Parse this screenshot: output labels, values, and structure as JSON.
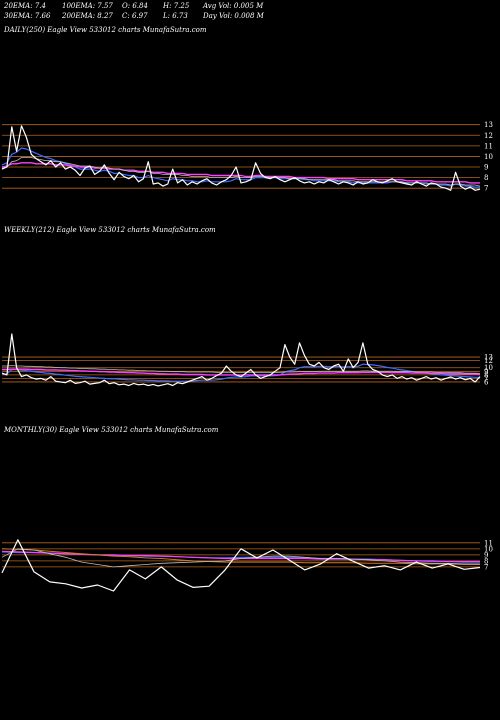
{
  "header": {
    "row1": [
      {
        "label": "20EMA: 7.4"
      },
      {
        "label": "100EMA: 7.57"
      },
      {
        "label": "O: 6.84"
      },
      {
        "label": "H: 7.25"
      },
      {
        "label": "Avg Vol: 0.005 M"
      }
    ],
    "row2": [
      {
        "label": "30EMA: 7.66"
      },
      {
        "label": "200EMA: 8.27"
      },
      {
        "label": "C: 6.97"
      },
      {
        "label": "L: 6.73"
      },
      {
        "label": "Day Vol: 0.008 M"
      }
    ]
  },
  "colors": {
    "background": "#000000",
    "price": "#ffffff",
    "ema_blue": "#3a6cff",
    "ema_magenta": "#ff40ff",
    "ema_orange": "#d07a20",
    "ema_gray": "#bbbbbb",
    "hline": "#b5651d"
  },
  "chart_data": [
    {
      "type": "line",
      "title": "DAILY(250) Eagle  View  533012  charts MunafaSutra.com",
      "yticks": [
        13,
        12,
        11,
        10,
        9,
        8,
        7
      ],
      "ylim": [
        5.6,
        14.2
      ],
      "series": [
        {
          "name": "price",
          "values": [
            8.8,
            9.0,
            12.8,
            10.5,
            12.9,
            11.8,
            10.2,
            9.8,
            9.5,
            9.2,
            9.6,
            9.0,
            9.4,
            8.8,
            9.0,
            8.7,
            8.2,
            8.9,
            9.1,
            8.3,
            8.6,
            9.2,
            8.4,
            7.8,
            8.5,
            8.1,
            7.9,
            8.2,
            7.6,
            7.9,
            9.5,
            7.4,
            7.5,
            7.2,
            7.4,
            8.8,
            7.5,
            7.8,
            7.3,
            7.6,
            7.4,
            7.7,
            7.9,
            7.5,
            7.3,
            7.6,
            7.8,
            8.2,
            9.0,
            7.5,
            7.6,
            7.8,
            9.4,
            8.4,
            8.0,
            7.9,
            8.1,
            7.8,
            7.6,
            7.8,
            8.0,
            7.7,
            7.5,
            7.6,
            7.4,
            7.6,
            7.5,
            7.8,
            7.6,
            7.4,
            7.6,
            7.5,
            7.3,
            7.6,
            7.4,
            7.5,
            7.8,
            7.6,
            7.5,
            7.7,
            7.9,
            7.6,
            7.5,
            7.4,
            7.3,
            7.6,
            7.4,
            7.2,
            7.5,
            7.4,
            7.1,
            7.0,
            6.8,
            8.5,
            7.2,
            6.9,
            7.1,
            6.8,
            6.9
          ]
        },
        {
          "name": "ema_fast",
          "values": [
            9.2,
            9.4,
            10.2,
            10.4,
            10.8,
            10.7,
            10.5,
            10.3,
            10.1,
            9.9,
            9.8,
            9.6,
            9.5,
            9.3,
            9.2,
            9.0,
            8.8,
            8.8,
            8.8,
            8.7,
            8.6,
            8.7,
            8.6,
            8.4,
            8.4,
            8.3,
            8.2,
            8.2,
            8.0,
            8.0,
            8.2,
            8.0,
            7.9,
            7.8,
            7.7,
            7.9,
            7.8,
            7.8,
            7.7,
            7.7,
            7.6,
            7.6,
            7.7,
            7.6,
            7.6,
            7.6,
            7.6,
            7.7,
            7.9,
            7.8,
            7.8,
            7.8,
            8.0,
            8.0,
            8.0,
            8.0,
            8.0,
            7.9,
            7.9,
            7.9,
            7.9,
            7.9,
            7.8,
            7.8,
            7.7,
            7.7,
            7.7,
            7.7,
            7.7,
            7.6,
            7.6,
            7.6,
            7.5,
            7.5,
            7.5,
            7.5,
            7.5,
            7.5,
            7.5,
            7.5,
            7.6,
            7.6,
            7.6,
            7.5,
            7.5,
            7.5,
            7.5,
            7.4,
            7.4,
            7.4,
            7.3,
            7.3,
            7.2,
            7.4,
            7.3,
            7.2,
            7.2,
            7.1,
            7.1
          ]
        },
        {
          "name": "ema_slow",
          "values": [
            9.0,
            9.1,
            9.3,
            9.3,
            9.4,
            9.4,
            9.4,
            9.3,
            9.3,
            9.3,
            9.3,
            9.2,
            9.2,
            9.2,
            9.1,
            9.1,
            9.0,
            9.0,
            9.0,
            8.9,
            8.9,
            8.9,
            8.8,
            8.8,
            8.8,
            8.7,
            8.7,
            8.7,
            8.6,
            8.6,
            8.6,
            8.5,
            8.5,
            8.5,
            8.4,
            8.4,
            8.4,
            8.4,
            8.3,
            8.3,
            8.3,
            8.3,
            8.3,
            8.2,
            8.2,
            8.2,
            8.2,
            8.2,
            8.2,
            8.2,
            8.1,
            8.1,
            8.2,
            8.2,
            8.1,
            8.1,
            8.1,
            8.1,
            8.1,
            8.1,
            8.0,
            8.0,
            8.0,
            8.0,
            8.0,
            8.0,
            8.0,
            7.9,
            7.9,
            7.9,
            7.9,
            7.9,
            7.9,
            7.8,
            7.8,
            7.8,
            7.8,
            7.8,
            7.8,
            7.8,
            7.8,
            7.8,
            7.8,
            7.7,
            7.7,
            7.7,
            7.7,
            7.7,
            7.7,
            7.6,
            7.6,
            7.6,
            7.6,
            7.6,
            7.6,
            7.6,
            7.5,
            7.5,
            7.5
          ]
        },
        {
          "name": "ema_mid",
          "values": [
            8.9,
            9.0,
            9.5,
            9.6,
            9.9,
            9.9,
            9.9,
            9.8,
            9.7,
            9.6,
            9.6,
            9.5,
            9.5,
            9.4,
            9.3,
            9.2,
            9.1,
            9.1,
            9.1,
            9.0,
            8.9,
            9.0,
            8.9,
            8.8,
            8.8,
            8.7,
            8.6,
            8.6,
            8.5,
            8.5,
            8.6,
            8.4,
            8.4,
            8.3,
            8.3,
            8.3,
            8.3,
            8.2,
            8.2,
            8.1,
            8.1,
            8.1,
            8.1,
            8.0,
            8.0,
            8.0,
            8.0,
            8.0,
            8.1,
            8.0,
            8.0,
            8.0,
            8.1,
            8.1,
            8.1,
            8.0,
            8.0,
            8.0,
            8.0,
            7.9,
            7.9,
            7.9,
            7.9,
            7.8,
            7.8,
            7.8,
            7.8,
            7.8,
            7.8,
            7.7,
            7.7,
            7.7,
            7.7,
            7.6,
            7.6,
            7.6,
            7.6,
            7.6,
            7.6,
            7.6,
            7.6,
            7.6,
            7.6,
            7.5,
            7.5,
            7.5,
            7.5,
            7.5,
            7.4,
            7.4,
            7.4,
            7.4,
            7.3,
            7.4,
            7.4,
            7.3,
            7.3,
            7.3,
            7.2
          ]
        }
      ]
    },
    {
      "type": "line",
      "title": "WEEKLY(212) Eagle  View  533012  charts MunafaSutra.com",
      "yticks": [
        13,
        12,
        10,
        9,
        8,
        7,
        6
      ],
      "ylim": [
        4.3,
        24.0
      ],
      "series": [
        {
          "name": "price",
          "values": [
            8.5,
            8.0,
            19.5,
            10.0,
            7.5,
            8.0,
            7.2,
            6.8,
            7.0,
            6.5,
            7.5,
            6.2,
            6.0,
            5.8,
            6.5,
            5.6,
            5.8,
            6.2,
            5.4,
            5.6,
            5.8,
            6.5,
            5.5,
            5.8,
            5.2,
            5.4,
            5.0,
            5.6,
            5.2,
            5.4,
            5.0,
            5.3,
            4.9,
            5.2,
            5.5,
            5.0,
            5.8,
            5.5,
            6.0,
            6.5,
            7.0,
            7.5,
            6.5,
            7.0,
            7.8,
            8.5,
            10.5,
            9.0,
            8.0,
            7.5,
            8.5,
            9.5,
            8.0,
            7.0,
            7.5,
            8.0,
            9.0,
            10.0,
            16.5,
            13.0,
            11.0,
            17.0,
            13.5,
            11.0,
            10.5,
            11.5,
            10.0,
            9.5,
            10.5,
            11.0,
            9.0,
            12.5,
            10.0,
            11.5,
            17.0,
            11.0,
            9.5,
            9.0,
            8.0,
            7.5,
            8.0,
            7.0,
            7.5,
            6.8,
            7.2,
            6.5,
            7.0,
            7.5,
            6.8,
            7.2,
            6.5,
            7.0,
            7.4,
            6.8,
            7.2,
            6.6,
            7.0,
            6.0,
            7.5
          ]
        },
        {
          "name": "ema_fast",
          "values": [
            8.2,
            8.2,
            9.5,
            9.5,
            9.3,
            9.2,
            9.0,
            8.8,
            8.7,
            8.5,
            8.4,
            8.2,
            8.1,
            7.9,
            7.8,
            7.6,
            7.5,
            7.4,
            7.3,
            7.2,
            7.1,
            7.0,
            6.9,
            6.9,
            6.8,
            6.7,
            6.6,
            6.6,
            6.5,
            6.5,
            6.4,
            6.4,
            6.3,
            6.3,
            6.3,
            6.2,
            6.2,
            6.2,
            6.2,
            6.3,
            6.4,
            6.5,
            6.5,
            6.5,
            6.6,
            6.8,
            7.1,
            7.3,
            7.4,
            7.4,
            7.5,
            7.7,
            7.7,
            7.7,
            7.7,
            7.7,
            7.8,
            8.0,
            8.8,
            9.2,
            9.4,
            10.0,
            10.3,
            10.3,
            10.3,
            10.4,
            10.4,
            10.3,
            10.3,
            10.4,
            10.2,
            10.3,
            10.3,
            10.4,
            11.0,
            10.9,
            10.8,
            10.6,
            10.4,
            10.1,
            9.9,
            9.6,
            9.4,
            9.2,
            9.0,
            8.8,
            8.6,
            8.5,
            8.3,
            8.2,
            8.0,
            7.9,
            7.8,
            7.7,
            7.6,
            7.5,
            7.4,
            7.3,
            7.3
          ]
        },
        {
          "name": "ema_slow",
          "values": [
            9.5,
            9.5,
            9.6,
            9.6,
            9.6,
            9.6,
            9.5,
            9.5,
            9.5,
            9.4,
            9.4,
            9.4,
            9.3,
            9.3,
            9.2,
            9.2,
            9.1,
            9.1,
            9.0,
            9.0,
            8.9,
            8.9,
            8.8,
            8.8,
            8.7,
            8.7,
            8.6,
            8.6,
            8.5,
            8.5,
            8.4,
            8.4,
            8.3,
            8.3,
            8.2,
            8.2,
            8.2,
            8.1,
            8.1,
            8.1,
            8.1,
            8.1,
            8.0,
            8.0,
            8.0,
            8.0,
            8.0,
            8.0,
            8.0,
            8.0,
            8.0,
            8.0,
            8.0,
            8.0,
            8.0,
            8.0,
            8.0,
            8.0,
            8.1,
            8.2,
            8.2,
            8.3,
            8.4,
            8.4,
            8.4,
            8.5,
            8.5,
            8.5,
            8.5,
            8.6,
            8.6,
            8.6,
            8.6,
            8.6,
            8.7,
            8.7,
            8.7,
            8.7,
            8.7,
            8.7,
            8.6,
            8.6,
            8.6,
            8.6,
            8.5,
            8.5,
            8.5,
            8.5,
            8.4,
            8.4,
            8.4,
            8.3,
            8.3,
            8.3,
            8.3,
            8.2,
            8.2,
            8.2,
            8.1
          ]
        },
        {
          "name": "ema_mid",
          "values": [
            10.5,
            10.5,
            10.6,
            10.5,
            10.5,
            10.4,
            10.4,
            10.3,
            10.3,
            10.2,
            10.2,
            10.1,
            10.0,
            10.0,
            9.9,
            9.9,
            9.8,
            9.8,
            9.7,
            9.7,
            9.6,
            9.6,
            9.5,
            9.5,
            9.4,
            9.4,
            9.3,
            9.3,
            9.2,
            9.2,
            9.1,
            9.1,
            9.0,
            9.0,
            9.0,
            8.9,
            8.9,
            8.9,
            8.8,
            8.8,
            8.8,
            8.8,
            8.8,
            8.8,
            8.7,
            8.7,
            8.7,
            8.7,
            8.7,
            8.7,
            8.7,
            8.7,
            8.7,
            8.7,
            8.7,
            8.7,
            8.7,
            8.7,
            8.8,
            8.8,
            8.8,
            8.9,
            8.9,
            8.9,
            8.9,
            9.0,
            9.0,
            9.0,
            9.0,
            9.0,
            9.0,
            9.0,
            9.0,
            9.0,
            9.1,
            9.1,
            9.0,
            9.0,
            9.0,
            9.0,
            9.0,
            8.9,
            8.9,
            8.9,
            8.9,
            8.8,
            8.8,
            8.8,
            8.8,
            8.7,
            8.7,
            8.7,
            8.6,
            8.6,
            8.6,
            8.5,
            8.5,
            8.5,
            8.4
          ]
        }
      ]
    },
    {
      "type": "line",
      "title": "MONTHLY(30) Eagle  View  533012  charts MunafaSutra.com",
      "yticks": [
        11,
        10,
        9,
        8,
        7
      ],
      "ylim": [
        1.5,
        12.3
      ],
      "series": [
        {
          "name": "price",
          "values": [
            6.0,
            11.5,
            6.2,
            4.5,
            4.2,
            3.5,
            4.0,
            3.0,
            6.5,
            5.0,
            7.0,
            4.8,
            3.6,
            3.8,
            6.5,
            10.0,
            8.5,
            9.8,
            8.2,
            6.5,
            7.5,
            9.2,
            8.0,
            6.8,
            7.2,
            6.5,
            7.8,
            6.8,
            7.5,
            6.6,
            6.9
          ]
        },
        {
          "name": "ema_blue",
          "values": [
            9.5,
            9.4,
            9.4,
            9.3,
            9.2,
            9.1,
            9.0,
            8.9,
            8.9,
            8.8,
            8.8,
            8.7,
            8.6,
            8.5,
            8.5,
            8.6,
            8.6,
            8.6,
            8.6,
            8.5,
            8.4,
            8.4,
            8.3,
            8.3,
            8.2,
            8.1,
            8.0,
            7.9,
            7.9,
            7.8,
            7.8
          ]
        },
        {
          "name": "ema_magenta",
          "values": [
            9.6,
            9.5,
            9.4,
            9.3,
            9.2,
            9.1,
            9.0,
            9.0,
            8.9,
            8.9,
            8.8,
            8.7,
            8.6,
            8.5,
            8.4,
            8.4,
            8.4,
            8.4,
            8.4,
            8.4,
            8.3,
            8.3,
            8.3,
            8.2,
            8.2,
            8.1,
            8.0,
            8.0,
            7.9,
            7.9,
            7.9
          ]
        },
        {
          "name": "ema_orange",
          "values": [
            10.0,
            9.9,
            9.8,
            9.6,
            9.4,
            9.2,
            9.0,
            8.8,
            8.7,
            8.5,
            8.4,
            8.2,
            8.0,
            7.9,
            7.8,
            7.8,
            7.8,
            7.8,
            7.8,
            7.7,
            7.7,
            7.7,
            7.7,
            7.6,
            7.6,
            7.6,
            7.5,
            7.5,
            7.5,
            7.4,
            7.4
          ]
        },
        {
          "name": "ema_gray",
          "values": [
            8.6,
            10.0,
            9.8,
            9.2,
            8.6,
            7.8,
            7.4,
            7.0,
            7.2,
            7.4,
            7.6,
            7.7,
            7.8,
            7.9,
            8.0,
            8.4,
            8.6,
            8.8,
            8.8,
            8.6,
            8.4,
            8.4,
            8.3,
            8.2,
            8.0,
            7.8,
            7.7,
            7.6,
            7.6,
            7.5,
            7.5
          ]
        }
      ]
    }
  ]
}
